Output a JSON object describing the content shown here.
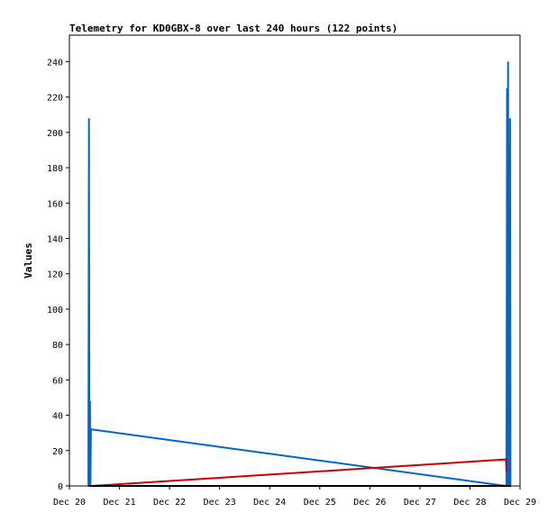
{
  "chart_data": {
    "type": "line",
    "title": "Telemetry for KD0GBX-8 over last 240 hours (122 points)",
    "xlabel": "",
    "ylabel": "Values",
    "ylim": [
      0,
      255
    ],
    "xlim": [
      20.0,
      29.0
    ],
    "x_ticks": [
      {
        "value": 20,
        "label": "Dec 20"
      },
      {
        "value": 21,
        "label": "Dec 21"
      },
      {
        "value": 22,
        "label": "Dec 22"
      },
      {
        "value": 23,
        "label": "Dec 23"
      },
      {
        "value": 24,
        "label": "Dec 24"
      },
      {
        "value": 25,
        "label": "Dec 25"
      },
      {
        "value": 26,
        "label": "Dec 26"
      },
      {
        "value": 27,
        "label": "Dec 27"
      },
      {
        "value": 28,
        "label": "Dec 28"
      },
      {
        "value": 29,
        "label": "Dec 29"
      }
    ],
    "y_ticks": [
      0,
      20,
      40,
      60,
      80,
      100,
      120,
      140,
      160,
      180,
      200,
      220,
      240
    ],
    "grid": false,
    "series": [
      {
        "color": "#0066cc",
        "x": [
          20.38,
          20.39,
          20.4,
          20.41,
          20.42,
          20.43,
          20.44,
          28.72,
          28.73,
          28.74,
          28.75,
          28.76,
          28.77,
          28.78,
          28.79,
          28.8,
          28.81
        ],
        "y": [
          0,
          208,
          0,
          48,
          0,
          32,
          32,
          0,
          0,
          225,
          0,
          240,
          0,
          145,
          0,
          208,
          0
        ]
      },
      {
        "color": "#cc0000",
        "x": [
          20.45,
          28.72,
          28.73
        ],
        "y": [
          0,
          15,
          8
        ]
      },
      {
        "color": "#000000",
        "x": [
          20.38,
          28.82
        ],
        "y": [
          0,
          0
        ]
      }
    ]
  }
}
